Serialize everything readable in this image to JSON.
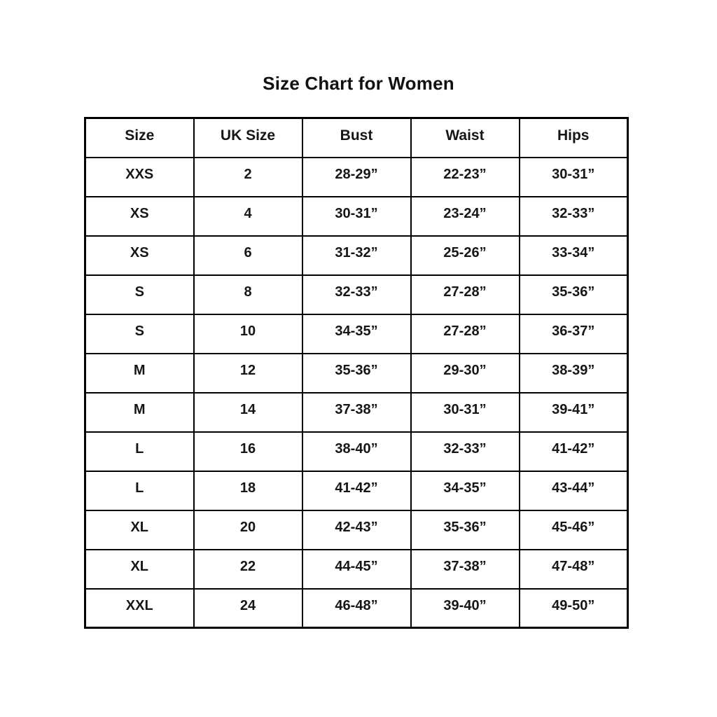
{
  "title": "Size Chart for Women",
  "colors": {
    "background": "#ffffff",
    "border": "#000000",
    "text": "#161616"
  },
  "table": {
    "headers": [
      "Size",
      "UK Size",
      "Bust",
      "Waist",
      "Hips"
    ],
    "rows": [
      [
        "XXS",
        "2",
        "28-29”",
        "22-23”",
        "30-31”"
      ],
      [
        "XS",
        "4",
        "30-31”",
        "23-24”",
        "32-33”"
      ],
      [
        "XS",
        "6",
        "31-32”",
        "25-26”",
        "33-34”"
      ],
      [
        "S",
        "8",
        "32-33”",
        "27-28”",
        "35-36”"
      ],
      [
        "S",
        "10",
        "34-35”",
        "27-28”",
        "36-37”"
      ],
      [
        "M",
        "12",
        "35-36”",
        "29-30”",
        "38-39”"
      ],
      [
        "M",
        "14",
        "37-38”",
        "30-31”",
        "39-41”"
      ],
      [
        "L",
        "16",
        "38-40”",
        "32-33”",
        "41-42”"
      ],
      [
        "L",
        "18",
        "41-42”",
        "34-35”",
        "43-44”"
      ],
      [
        "XL",
        "20",
        "42-43”",
        "35-36”",
        "45-46”"
      ],
      [
        "XL",
        "22",
        "44-45”",
        "37-38”",
        "47-48”"
      ],
      [
        "XXL",
        "24",
        "46-48”",
        "39-40”",
        "49-50”"
      ]
    ]
  },
  "chart_data": {
    "type": "table",
    "title": "Size Chart for Women",
    "columns": [
      "Size",
      "UK Size",
      "Bust",
      "Waist",
      "Hips"
    ],
    "rows": [
      {
        "size": "XXS",
        "uk_size": 2,
        "bust": "28-29”",
        "waist": "22-23”",
        "hips": "30-31”"
      },
      {
        "size": "XS",
        "uk_size": 4,
        "bust": "30-31”",
        "waist": "23-24”",
        "hips": "32-33”"
      },
      {
        "size": "XS",
        "uk_size": 6,
        "bust": "31-32”",
        "waist": "25-26”",
        "hips": "33-34”"
      },
      {
        "size": "S",
        "uk_size": 8,
        "bust": "32-33”",
        "waist": "27-28”",
        "hips": "35-36”"
      },
      {
        "size": "S",
        "uk_size": 10,
        "bust": "34-35”",
        "waist": "27-28”",
        "hips": "36-37”"
      },
      {
        "size": "M",
        "uk_size": 12,
        "bust": "35-36”",
        "waist": "29-30”",
        "hips": "38-39”"
      },
      {
        "size": "M",
        "uk_size": 14,
        "bust": "37-38”",
        "waist": "30-31”",
        "hips": "39-41”"
      },
      {
        "size": "L",
        "uk_size": 16,
        "bust": "38-40”",
        "waist": "32-33”",
        "hips": "41-42”"
      },
      {
        "size": "L",
        "uk_size": 18,
        "bust": "41-42”",
        "waist": "34-35”",
        "hips": "43-44”"
      },
      {
        "size": "XL",
        "uk_size": 20,
        "bust": "42-43”",
        "waist": "35-36”",
        "hips": "45-46”"
      },
      {
        "size": "XL",
        "uk_size": 22,
        "bust": "44-45”",
        "waist": "37-38”",
        "hips": "47-48”"
      },
      {
        "size": "XXL",
        "uk_size": 24,
        "bust": "46-48”",
        "waist": "39-40”",
        "hips": "49-50”"
      }
    ]
  }
}
